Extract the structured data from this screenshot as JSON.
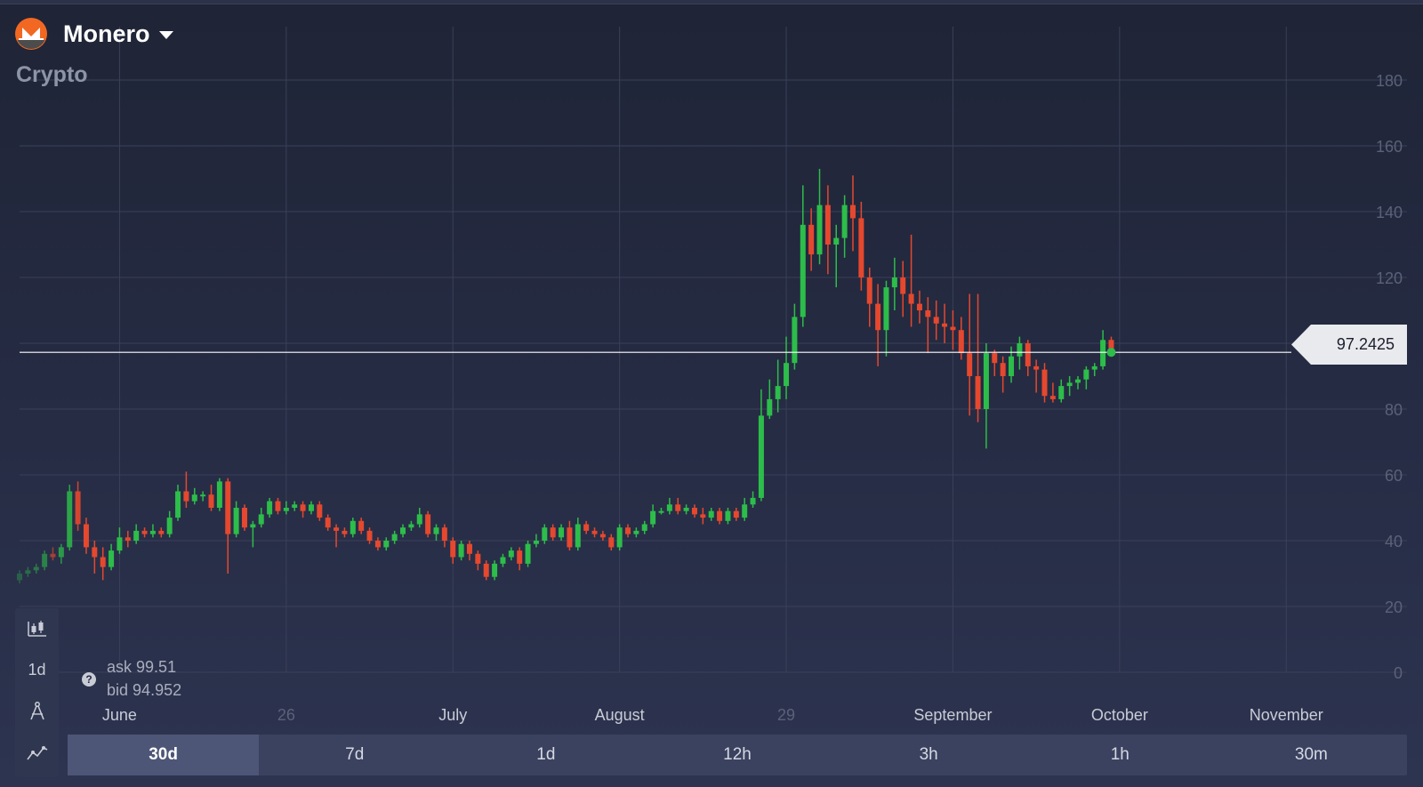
{
  "header": {
    "asset_name": "Monero",
    "category": "Crypto",
    "logo_icon": "monero-logo-icon",
    "logo_color": "#f26822"
  },
  "current_price": {
    "label": "97.2425",
    "value": 97.2425
  },
  "ask_bid": {
    "ask_label": "ask",
    "ask_value": "99.51",
    "bid_label": "bid",
    "bid_value": "94.952"
  },
  "side_toolbar": {
    "chart_type_icon": "candlestick-icon",
    "interval_label": "1d",
    "drawing_icon": "compass-icon",
    "indicators_icon": "indicator-icon"
  },
  "timeframes": [
    {
      "label": "30d",
      "active": true
    },
    {
      "label": "7d",
      "active": false
    },
    {
      "label": "1d",
      "active": false
    },
    {
      "label": "12h",
      "active": false
    },
    {
      "label": "3h",
      "active": false
    },
    {
      "label": "1h",
      "active": false
    },
    {
      "label": "30m",
      "active": false
    }
  ],
  "colors": {
    "up": "#2dbd4a",
    "down": "#e5482e",
    "grid": "#3a4058"
  },
  "chart_data": {
    "type": "candlestick",
    "title": "",
    "xlabel": "",
    "ylabel": "",
    "ylim": [
      0,
      180
    ],
    "yticks": [
      0,
      20,
      40,
      60,
      80,
      100,
      120,
      140,
      160,
      180
    ],
    "xticks": [
      {
        "label": "June",
        "idx": 12,
        "dim": false
      },
      {
        "label": "26",
        "idx": 32,
        "dim": true
      },
      {
        "label": "July",
        "idx": 52,
        "dim": false
      },
      {
        "label": "August",
        "idx": 72,
        "dim": false
      },
      {
        "label": "29",
        "idx": 92,
        "dim": true
      },
      {
        "label": "September",
        "idx": 112,
        "dim": false
      },
      {
        "label": "October",
        "idx": 132,
        "dim": false
      },
      {
        "label": "November",
        "idx": 152,
        "dim": false
      }
    ],
    "ohlc": [
      [
        28,
        30,
        27,
        31
      ],
      [
        30,
        31,
        29,
        32
      ],
      [
        31,
        32,
        30,
        33
      ],
      [
        32,
        36,
        31,
        37
      ],
      [
        36,
        35,
        34,
        38
      ],
      [
        35,
        38,
        33,
        39
      ],
      [
        38,
        55,
        37,
        57
      ],
      [
        55,
        45,
        43,
        58
      ],
      [
        45,
        38,
        36,
        47
      ],
      [
        38,
        35,
        30,
        40
      ],
      [
        35,
        32,
        28,
        38
      ],
      [
        32,
        37,
        31,
        39
      ],
      [
        37,
        41,
        36,
        44
      ],
      [
        41,
        40,
        38,
        43
      ],
      [
        40,
        43,
        39,
        45
      ],
      [
        43,
        42,
        41,
        44
      ],
      [
        42,
        43,
        41,
        45
      ],
      [
        43,
        42,
        41,
        44
      ],
      [
        42,
        47,
        41,
        49
      ],
      [
        47,
        55,
        46,
        57
      ],
      [
        55,
        52,
        50,
        61
      ],
      [
        52,
        54,
        51,
        56
      ],
      [
        54,
        54,
        52,
        55
      ],
      [
        54,
        50,
        49,
        57
      ],
      [
        50,
        58,
        49,
        59
      ],
      [
        58,
        42,
        30,
        59
      ],
      [
        42,
        50,
        41,
        52
      ],
      [
        50,
        44,
        43,
        51
      ],
      [
        44,
        45,
        38,
        46
      ],
      [
        45,
        48,
        44,
        50
      ],
      [
        48,
        52,
        47,
        53
      ],
      [
        52,
        49,
        48,
        53
      ],
      [
        49,
        50,
        48,
        52
      ],
      [
        50,
        51,
        49,
        52
      ],
      [
        51,
        49,
        47,
        52
      ],
      [
        49,
        51,
        48,
        52
      ],
      [
        51,
        47,
        46,
        52
      ],
      [
        47,
        44,
        43,
        48
      ],
      [
        44,
        43,
        38,
        45
      ],
      [
        43,
        42,
        41,
        44
      ],
      [
        42,
        46,
        41,
        47
      ],
      [
        46,
        43,
        42,
        47
      ],
      [
        43,
        40,
        39,
        44
      ],
      [
        40,
        38,
        37,
        41
      ],
      [
        38,
        40,
        37,
        41
      ],
      [
        40,
        42,
        39,
        43
      ],
      [
        42,
        44,
        41,
        45
      ],
      [
        44,
        45,
        43,
        46
      ],
      [
        45,
        48,
        44,
        50
      ],
      [
        48,
        42,
        41,
        49
      ],
      [
        42,
        44,
        40,
        45
      ],
      [
        44,
        40,
        38,
        45
      ],
      [
        40,
        35,
        33,
        41
      ],
      [
        35,
        39,
        34,
        40
      ],
      [
        39,
        36,
        34,
        40
      ],
      [
        36,
        33,
        31,
        37
      ],
      [
        33,
        29,
        28,
        34
      ],
      [
        29,
        33,
        28,
        34
      ],
      [
        33,
        35,
        32,
        36
      ],
      [
        35,
        37,
        34,
        38
      ],
      [
        37,
        33,
        31,
        38
      ],
      [
        33,
        39,
        32,
        40
      ],
      [
        39,
        40,
        38,
        42
      ],
      [
        40,
        44,
        39,
        45
      ],
      [
        44,
        41,
        40,
        45
      ],
      [
        41,
        44,
        40,
        45
      ],
      [
        44,
        38,
        37,
        46
      ],
      [
        38,
        45,
        37,
        47
      ],
      [
        45,
        43,
        42,
        46
      ],
      [
        43,
        42,
        41,
        44
      ],
      [
        42,
        41,
        40,
        43
      ],
      [
        41,
        38,
        37,
        42
      ],
      [
        38,
        44,
        37,
        45
      ],
      [
        44,
        42,
        41,
        45
      ],
      [
        42,
        43,
        41,
        44
      ],
      [
        43,
        45,
        42,
        46
      ],
      [
        45,
        49,
        44,
        51
      ],
      [
        49,
        49,
        48,
        50
      ],
      [
        49,
        51,
        48,
        53
      ],
      [
        51,
        49,
        48,
        53
      ],
      [
        49,
        50,
        48,
        51
      ],
      [
        50,
        48,
        47,
        51
      ],
      [
        48,
        47,
        45,
        50
      ],
      [
        47,
        49,
        46,
        50
      ],
      [
        49,
        46,
        45,
        50
      ],
      [
        46,
        49,
        45,
        50
      ],
      [
        49,
        47,
        46,
        50
      ],
      [
        47,
        51,
        46,
        53
      ],
      [
        51,
        53,
        50,
        55
      ],
      [
        53,
        78,
        52,
        86
      ],
      [
        78,
        83,
        77,
        89
      ],
      [
        83,
        87,
        79,
        95
      ],
      [
        87,
        94,
        83,
        102
      ],
      [
        94,
        108,
        92,
        112
      ],
      [
        108,
        136,
        105,
        148
      ],
      [
        136,
        127,
        122,
        141
      ],
      [
        127,
        142,
        124,
        153
      ],
      [
        142,
        130,
        121,
        148
      ],
      [
        130,
        132,
        117,
        136
      ],
      [
        132,
        142,
        126,
        145
      ],
      [
        142,
        138,
        128,
        151
      ],
      [
        138,
        120,
        116,
        143
      ],
      [
        120,
        112,
        105,
        123
      ],
      [
        112,
        104,
        93,
        118
      ],
      [
        104,
        117,
        96,
        119
      ],
      [
        117,
        120,
        110,
        126
      ],
      [
        120,
        115,
        108,
        125
      ],
      [
        115,
        112,
        105,
        133
      ],
      [
        112,
        110,
        106,
        116
      ],
      [
        110,
        108,
        97,
        114
      ],
      [
        108,
        106,
        101,
        113
      ],
      [
        106,
        105,
        100,
        112
      ],
      [
        105,
        104,
        98,
        110
      ],
      [
        104,
        97,
        95,
        108
      ],
      [
        97,
        90,
        78,
        115
      ],
      [
        90,
        80,
        76,
        115
      ],
      [
        80,
        97,
        68,
        100
      ],
      [
        97,
        94,
        90,
        98
      ],
      [
        94,
        90,
        85,
        96
      ],
      [
        90,
        96,
        88,
        99
      ],
      [
        96,
        100,
        92,
        102
      ],
      [
        100,
        93,
        90,
        101
      ],
      [
        93,
        92,
        85,
        95
      ],
      [
        92,
        84,
        82,
        94
      ],
      [
        84,
        83,
        82,
        88
      ],
      [
        83,
        87,
        82,
        89
      ],
      [
        87,
        88,
        84,
        90
      ],
      [
        88,
        89,
        86,
        90
      ],
      [
        89,
        92,
        86,
        93
      ],
      [
        92,
        93,
        90,
        94
      ],
      [
        93,
        101,
        92,
        104
      ],
      [
        101,
        97,
        96,
        102
      ]
    ]
  }
}
